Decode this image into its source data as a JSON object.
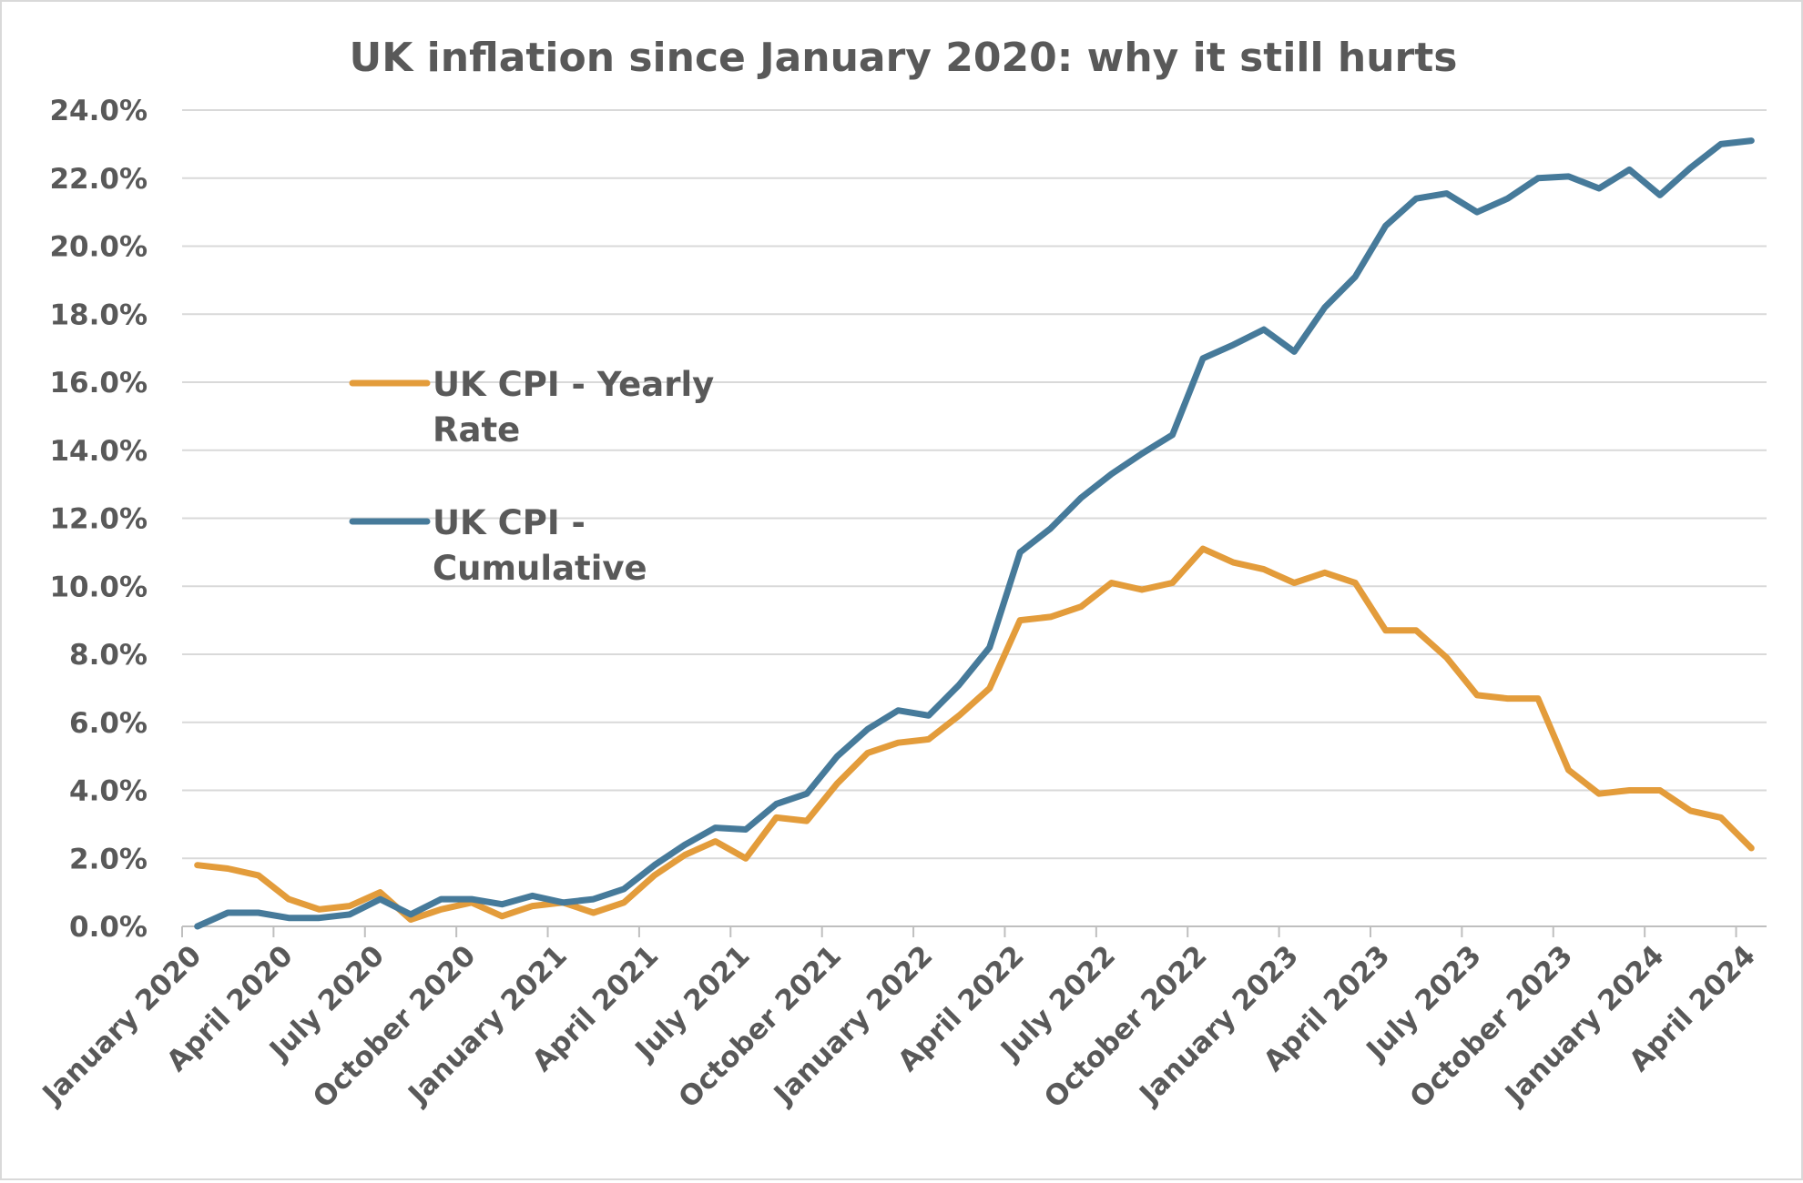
{
  "chart_data": {
    "type": "line",
    "title": "UK inflation since January 2020: why it still hurts",
    "xlabel": "",
    "ylabel": "",
    "ylim": [
      0,
      24
    ],
    "y_ticks": [
      "0.0%",
      "2.0%",
      "4.0%",
      "6.0%",
      "8.0%",
      "10.0%",
      "12.0%",
      "14.0%",
      "16.0%",
      "18.0%",
      "20.0%",
      "22.0%",
      "24.0%"
    ],
    "grid": true,
    "legend_placement": "left-middle",
    "x_tick_labels": [
      "January 2020",
      "April 2020",
      "July 2020",
      "October 2020",
      "January 2021",
      "April 2021",
      "July 2021",
      "October 2021",
      "January 2022",
      "April 2022",
      "July 2022",
      "October 2022",
      "January 2023",
      "April 2023",
      "July 2023",
      "October 2023",
      "January 2024",
      "April 2024"
    ],
    "x_tick_every": 3,
    "series": [
      {
        "name": "UK CPI - Yearly Rate",
        "name_lines": [
          "UK CPI - Yearly",
          "Rate"
        ],
        "color": "#E39C3B",
        "values": [
          1.8,
          1.7,
          1.5,
          0.8,
          0.5,
          0.6,
          1.0,
          0.2,
          0.5,
          0.7,
          0.3,
          0.6,
          0.7,
          0.4,
          0.7,
          1.5,
          2.1,
          2.5,
          2.0,
          3.2,
          3.1,
          4.2,
          5.1,
          5.4,
          5.5,
          6.2,
          7.0,
          9.0,
          9.1,
          9.4,
          10.1,
          9.9,
          10.1,
          11.1,
          10.7,
          10.5,
          10.1,
          10.4,
          10.1,
          8.7,
          8.7,
          7.9,
          6.8,
          6.7,
          6.7,
          4.6,
          3.9,
          4.0,
          4.0,
          3.4,
          3.2,
          2.3
        ]
      },
      {
        "name": "UK CPI - Cumulative",
        "name_lines": [
          "UK CPI -",
          "Cumulative"
        ],
        "color": "#467A9A",
        "values": [
          0.0,
          0.4,
          0.4,
          0.25,
          0.25,
          0.35,
          0.8,
          0.35,
          0.8,
          0.8,
          0.65,
          0.9,
          0.7,
          0.8,
          1.1,
          1.8,
          2.4,
          2.9,
          2.85,
          3.6,
          3.9,
          5.0,
          5.8,
          6.35,
          6.2,
          7.1,
          8.2,
          11.0,
          11.7,
          12.6,
          13.3,
          13.9,
          14.45,
          16.7,
          17.1,
          17.55,
          16.9,
          18.2,
          19.1,
          20.6,
          21.4,
          21.55,
          21.0,
          21.4,
          22.0,
          22.05,
          21.7,
          22.25,
          21.5,
          22.3,
          23.0,
          23.1
        ]
      }
    ]
  }
}
